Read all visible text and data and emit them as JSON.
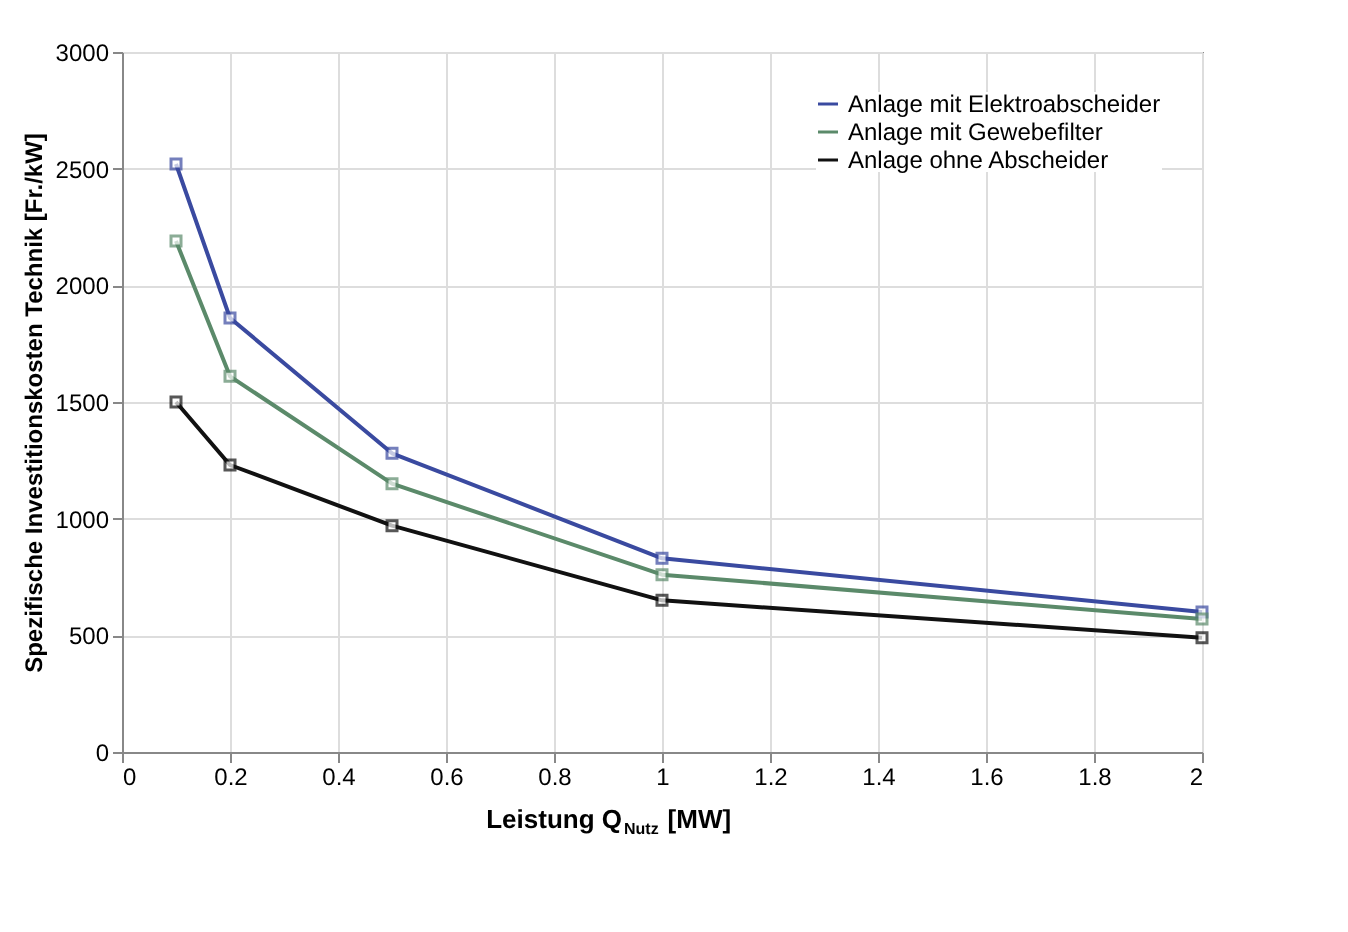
{
  "chart_data": {
    "type": "line",
    "xlabel": "Leistung Q$_{Nutz}$  [MW]",
    "ylabel": "Spezifische Investitionskosten Technik  [Fr./kW]",
    "x": [
      0.1,
      0.2,
      0.5,
      1,
      2
    ],
    "series": [
      {
        "name": "Anlage mit Elektroabscheider",
        "color": "#3a4aa0",
        "values": [
          2520,
          1860,
          1280,
          830,
          600
        ]
      },
      {
        "name": "Anlage mit Gewebefilter",
        "color": "#5b8a6a",
        "values": [
          2190,
          1610,
          1150,
          760,
          570
        ]
      },
      {
        "name": "Anlage ohne Abscheider",
        "color": "#111111",
        "values": [
          1500,
          1230,
          970,
          650,
          490
        ]
      }
    ],
    "xlim": [
      0,
      2
    ],
    "xticks": [
      0,
      0.2,
      0.4,
      0.6,
      0.8,
      1,
      1.2,
      1.4,
      1.6,
      1.8,
      2
    ],
    "ylim": [
      0,
      3000
    ],
    "yticks": [
      0,
      500,
      1000,
      1500,
      2000,
      2500,
      3000
    ],
    "grid": true,
    "legend": "top right",
    "marker": "square",
    "line_style": "solid"
  }
}
